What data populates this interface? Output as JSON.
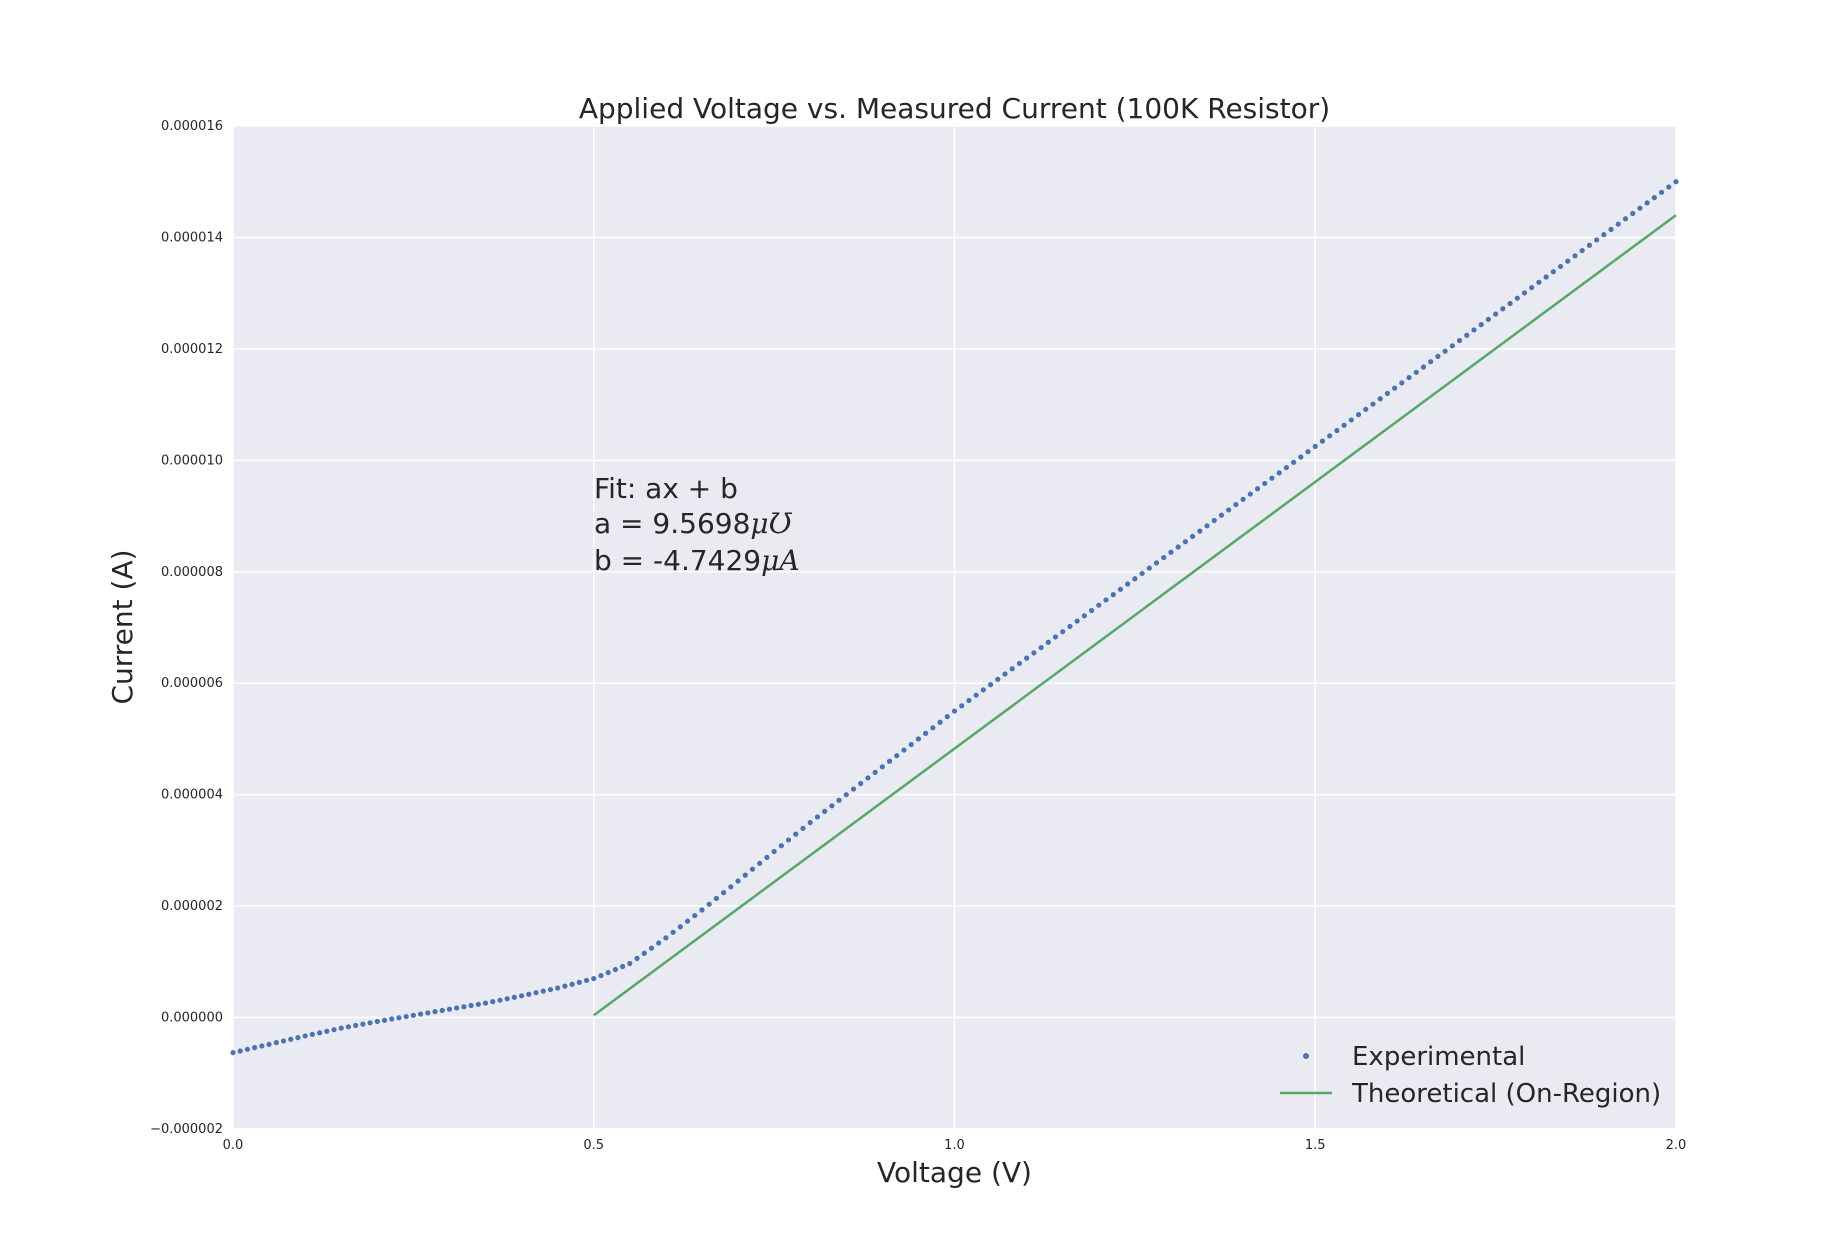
{
  "chart_data": {
    "type": "scatter",
    "title": "Applied Voltage vs. Measured Current (100K Resistor)",
    "xlabel": "Voltage (V)",
    "ylabel": "Current (A)",
    "xlim": [
      0.0,
      2.0
    ],
    "ylim": [
      -2e-06,
      1.6e-05
    ],
    "xticks": [
      0.0,
      0.5,
      1.0,
      1.5,
      2.0
    ],
    "xtick_labels": [
      "0.0",
      "0.5",
      "1.0",
      "1.5",
      "2.0"
    ],
    "yticks": [
      -2e-06,
      0.0,
      2e-06,
      4e-06,
      6e-06,
      8e-06,
      1e-05,
      1.2e-05,
      1.4e-05,
      1.6e-05
    ],
    "ytick_labels": [
      "−0.000002",
      "0.000000",
      "0.000002",
      "0.000004",
      "0.000006",
      "0.000008",
      "0.000010",
      "0.000012",
      "0.000014",
      "0.000016"
    ],
    "grid": true,
    "legend_position": "lower-right",
    "background": "#eaeaf2",
    "annotation": {
      "line1": "Fit: ax + b",
      "line2_prefix": "a = 9.5698",
      "line2_unit": "μƱ",
      "line3_prefix": "b = -4.7429",
      "line3_unit": "μA",
      "x": 0.5,
      "y": 9.5e-06
    },
    "series": [
      {
        "name": "Experimental",
        "style": "points",
        "color": "#4c72b0",
        "x": [
          0.0,
          0.05,
          0.1,
          0.15,
          0.2,
          0.25,
          0.3,
          0.35,
          0.4,
          0.45,
          0.5,
          0.55,
          0.6,
          0.65,
          0.7,
          0.75,
          0.8,
          0.9,
          1.0,
          1.1,
          1.2,
          1.3,
          1.4,
          1.5,
          1.6,
          1.7,
          1.8,
          1.9,
          2.0
        ],
        "y": [
          -6.3e-07,
          -4.8e-07,
          -3.3e-07,
          -1.9e-07,
          -7e-08,
          4e-08,
          1.5e-07,
          2.6e-07,
          3.9e-07,
          5.3e-07,
          7e-07,
          9.7e-07,
          1.43e-06,
          1.93e-06,
          2.45e-06,
          2.98e-06,
          3.5e-06,
          4.5e-06,
          5.5e-06,
          6.45e-06,
          7.4e-06,
          8.35e-06,
          9.3e-06,
          1.025e-05,
          1.12e-05,
          1.215e-05,
          1.31e-05,
          1.405e-05,
          1.5e-05
        ]
      },
      {
        "name": "Theoretical (On-Region)",
        "style": "line",
        "color": "#55a868",
        "x": [
          0.5,
          2.0
        ],
        "y": [
          4e-08,
          1.44e-05
        ]
      }
    ]
  }
}
